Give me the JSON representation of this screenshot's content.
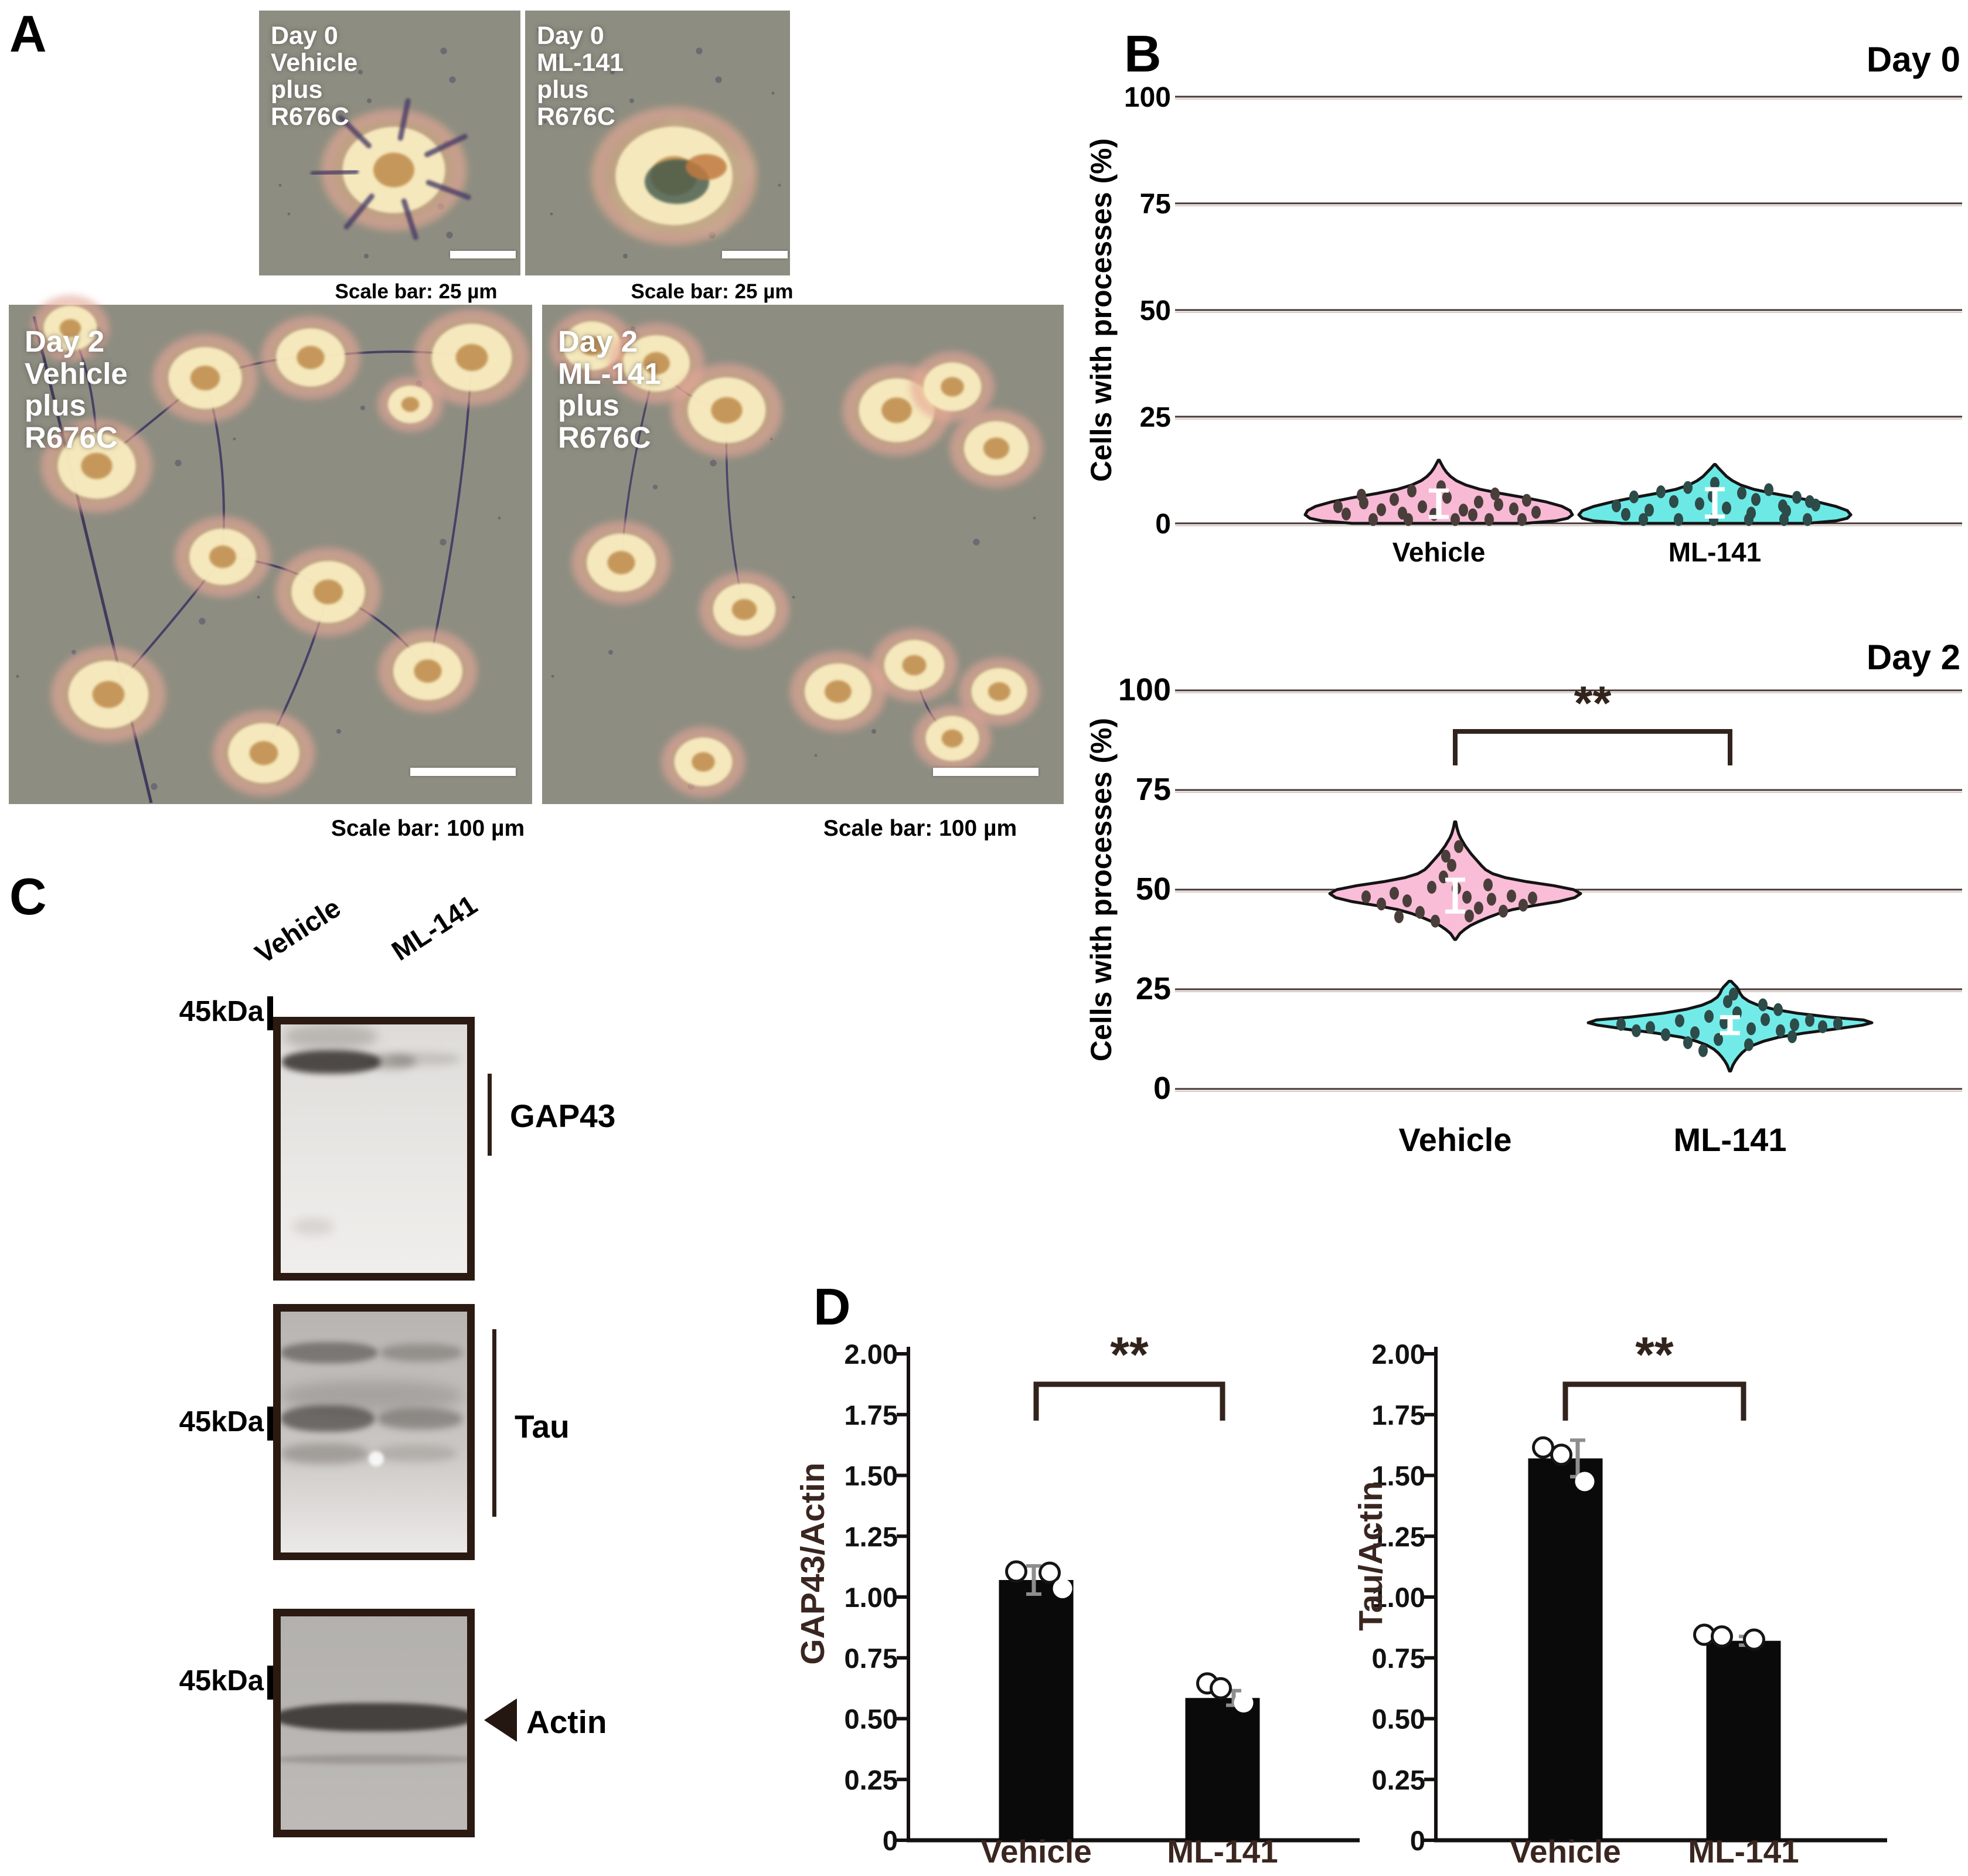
{
  "figure": {
    "panel_a_label": "A",
    "panel_b_label": "B",
    "panel_c_label": "C",
    "panel_d_label": "D"
  },
  "panel_a": {
    "images": [
      {
        "caption_lines": [
          "Day 0",
          "Vehicle",
          "plus",
          "R676C"
        ],
        "scale_bar_text": "Scale bar: 25 µm"
      },
      {
        "caption_lines": [
          "Day 0",
          "ML-141",
          "plus",
          "R676C"
        ],
        "scale_bar_text": "Scale bar: 25 µm"
      },
      {
        "caption_lines": [
          "Day 2",
          "Vehicle",
          "plus",
          "R676C"
        ],
        "scale_bar_text": "Scale bar: 100 µm"
      },
      {
        "caption_lines": [
          "Day 2",
          "ML-141",
          "plus",
          "R676C"
        ],
        "scale_bar_text": "Scale bar: 100 µm"
      }
    ]
  },
  "panel_c": {
    "lane_labels": [
      "Vehicle",
      "ML-141"
    ],
    "marker_label": "45kDa",
    "blot_names": [
      "GAP43",
      "Tau",
      "Actin"
    ],
    "icons": {
      "actin_arrowhead": "left-pointing-triangle"
    }
  },
  "chart_data": [
    {
      "type": "violin",
      "title": "Day 0",
      "ylabel": "Cells with processes (%)",
      "ylim": [
        0,
        100
      ],
      "yticks": [
        100,
        75,
        50,
        25,
        0
      ],
      "categories": [
        "Vehicle",
        "ML-141"
      ],
      "grid": true,
      "significance": null,
      "series": [
        {
          "name": "Vehicle",
          "color": "#F8B9D5",
          "dot_color": "#4a3e3b",
          "mean": 4.6,
          "sd": 3.1,
          "profile": [
            [
              0,
              148
            ],
            [
              0.6,
              200
            ],
            [
              1.2,
              220
            ],
            [
              2,
              228
            ],
            [
              3,
              224
            ],
            [
              4,
              210
            ],
            [
              5,
              184
            ],
            [
              6,
              148
            ],
            [
              7,
              106
            ],
            [
              8,
              70
            ],
            [
              9,
              46
            ],
            [
              10,
              30
            ],
            [
              11,
              20
            ],
            [
              12,
              13
            ],
            [
              13,
              8
            ],
            [
              14,
              4
            ],
            [
              14.8,
              1
            ]
          ],
          "points": [
            [
              -158,
              2.2
            ],
            [
              -128,
              4.8
            ],
            [
              -98,
              3.2
            ],
            [
              -132,
              6.6
            ],
            [
              -62,
              2.4
            ],
            [
              -76,
              5.6
            ],
            [
              -28,
              3.9
            ],
            [
              -8,
              2.1
            ],
            [
              14,
              6.1
            ],
            [
              -46,
              7.6
            ],
            [
              4,
              8.6
            ],
            [
              42,
              3.1
            ],
            [
              68,
              5
            ],
            [
              58,
              2
            ],
            [
              102,
              4.4
            ],
            [
              96,
              6.9
            ],
            [
              128,
              3.4
            ],
            [
              150,
              5.4
            ],
            [
              166,
              2.6
            ],
            [
              -172,
              3.9
            ],
            [
              -112,
              0.9
            ],
            [
              -52,
              0.9
            ],
            [
              28,
              0.9
            ],
            [
              86,
              0.9
            ],
            [
              142,
              0.9
            ]
          ]
        },
        {
          "name": "ML-141",
          "color": "#6CE9E5",
          "dot_color": "#2d4b48",
          "mean": 4.8,
          "sd": 3.2,
          "profile": [
            [
              0,
              158
            ],
            [
              0.6,
              208
            ],
            [
              1.2,
              226
            ],
            [
              2,
              232
            ],
            [
              3,
              226
            ],
            [
              4,
              206
            ],
            [
              5,
              176
            ],
            [
              6,
              140
            ],
            [
              7,
              100
            ],
            [
              8,
              66
            ],
            [
              9,
              44
            ],
            [
              10,
              30
            ],
            [
              11,
              20
            ],
            [
              12,
              13
            ],
            [
              13,
              6
            ],
            [
              13.8,
              1
            ]
          ],
          "points": [
            [
              -168,
              4.1
            ],
            [
              -138,
              6.2
            ],
            [
              -112,
              3.1
            ],
            [
              -92,
              7.4
            ],
            [
              -70,
              5.1
            ],
            [
              -46,
              8.4
            ],
            [
              -26,
              4.6
            ],
            [
              -4,
              6.4
            ],
            [
              20,
              3.6
            ],
            [
              46,
              7.1
            ],
            [
              70,
              5.6
            ],
            [
              92,
              7.9
            ],
            [
              116,
              4.1
            ],
            [
              140,
              6.1
            ],
            [
              162,
              5.1
            ],
            [
              -152,
              2.1
            ],
            [
              0,
              9.4
            ],
            [
              62,
              2.4
            ],
            [
              122,
              2.9
            ],
            [
              172,
              4.3
            ],
            [
              -122,
              0.9
            ],
            [
              -62,
              0.9
            ],
            [
              -2,
              0.9
            ],
            [
              58,
              0.9
            ],
            [
              118,
              0.9
            ],
            [
              158,
              0.9
            ]
          ]
        }
      ]
    },
    {
      "type": "violin",
      "title": "Day 2",
      "ylabel": "Cells with processes (%)",
      "ylim": [
        0,
        100
      ],
      "yticks": [
        100,
        75,
        50,
        25,
        0
      ],
      "categories": [
        "Vehicle",
        "ML-141"
      ],
      "grid": true,
      "significance": {
        "label": "**",
        "between": [
          "Vehicle",
          "ML-141"
        ]
      },
      "series": [
        {
          "name": "Vehicle",
          "color": "#F9BDD7",
          "dot_color": "#4a3e3b",
          "mean": 48.5,
          "sd": 4,
          "closed": true,
          "profile": [
            [
              37.5,
              1
            ],
            [
              39,
              8
            ],
            [
              40,
              16
            ],
            [
              41,
              26
            ],
            [
              42,
              40
            ],
            [
              43,
              56
            ],
            [
              44,
              74
            ],
            [
              45,
              98
            ],
            [
              46,
              134
            ],
            [
              47,
              176
            ],
            [
              48,
              204
            ],
            [
              49,
              214
            ],
            [
              50,
              202
            ],
            [
              51,
              168
            ],
            [
              52,
              122
            ],
            [
              53,
              86
            ],
            [
              54,
              64
            ],
            [
              55,
              52
            ],
            [
              56,
              45
            ],
            [
              57,
              39
            ],
            [
              58,
              33
            ],
            [
              59,
              27
            ],
            [
              60,
              22
            ],
            [
              61,
              17
            ],
            [
              62,
              13
            ],
            [
              63,
              9
            ],
            [
              64,
              6
            ],
            [
              65.5,
              3
            ],
            [
              67,
              1
            ]
          ],
          "points": [
            [
              -152,
              48.2
            ],
            [
              -126,
              46.4
            ],
            [
              -104,
              49.1
            ],
            [
              -82,
              47.2
            ],
            [
              -60,
              44.3
            ],
            [
              -40,
              50.6
            ],
            [
              -20,
              53.2
            ],
            [
              -6,
              56.1
            ],
            [
              6,
              60.8
            ],
            [
              -16,
              58.4
            ],
            [
              20,
              48.1
            ],
            [
              40,
              45.4
            ],
            [
              62,
              47.6
            ],
            [
              82,
              44.6
            ],
            [
              96,
              48.4
            ],
            [
              116,
              46.1
            ],
            [
              132,
              47.9
            ],
            [
              -96,
              43.2
            ],
            [
              -34,
              42.1
            ],
            [
              24,
              43.4
            ],
            [
              56,
              51.2
            ],
            [
              2,
              50.3
            ]
          ]
        },
        {
          "name": "ML-141",
          "color": "#72EBE8",
          "dot_color": "#2d4b48",
          "mean": 16,
          "sd": 2,
          "closed": true,
          "profile": [
            [
              4.5,
              1
            ],
            [
              6,
              5
            ],
            [
              7,
              9
            ],
            [
              8,
              14
            ],
            [
              9,
              20
            ],
            [
              10,
              28
            ],
            [
              11,
              40
            ],
            [
              12,
              58
            ],
            [
              13,
              84
            ],
            [
              14,
              126
            ],
            [
              15,
              178
            ],
            [
              16,
              226
            ],
            [
              16.6,
              242
            ],
            [
              17.3,
              228
            ],
            [
              18,
              172
            ],
            [
              19,
              114
            ],
            [
              20,
              74
            ],
            [
              21,
              48
            ],
            [
              22,
              32
            ],
            [
              23,
              22
            ],
            [
              24,
              17
            ],
            [
              25,
              14
            ],
            [
              25.6,
              11
            ],
            [
              26.2,
              7
            ],
            [
              27,
              2
            ]
          ],
          "points": [
            [
              -186,
              16.2
            ],
            [
              -160,
              14.6
            ],
            [
              -136,
              15.4
            ],
            [
              -110,
              13.6
            ],
            [
              -86,
              17.1
            ],
            [
              -60,
              14.1
            ],
            [
              -36,
              18.2
            ],
            [
              -10,
              16.6
            ],
            [
              12,
              19.1
            ],
            [
              36,
              15.1
            ],
            [
              60,
              17.4
            ],
            [
              86,
              14.6
            ],
            [
              110,
              16.1
            ],
            [
              136,
              17.2
            ],
            [
              158,
              15.6
            ],
            [
              184,
              16.4
            ],
            [
              -72,
              11.6
            ],
            [
              -20,
              12.4
            ],
            [
              32,
              11.1
            ],
            [
              -46,
              9.6
            ],
            [
              6,
              23.8
            ],
            [
              56,
              21.1
            ],
            [
              -4,
              21.9
            ],
            [
              106,
              13.1
            ],
            [
              82,
              19.9
            ]
          ]
        }
      ]
    },
    {
      "type": "bar",
      "title": "",
      "ylabel": "GAP43/Actin",
      "ylim": [
        0,
        2
      ],
      "ytick_labels": [
        "2.00",
        "1.75",
        "1.50",
        "1.25",
        "1.00",
        "0.75",
        "0.50",
        "0.25",
        "0"
      ],
      "categories": [
        "Vehicle",
        "ML-141"
      ],
      "values": [
        1.07,
        0.585
      ],
      "sd": [
        0.058,
        0.03
      ],
      "bar_color": "#0a0a0a",
      "points": [
        [
          [
            -34,
            1.105
          ],
          [
            23,
            1.1
          ],
          [
            45,
            1.035
          ]
        ],
        [
          [
            -26,
            0.645
          ],
          [
            -3,
            0.625
          ],
          [
            36,
            0.565
          ]
        ]
      ],
      "significance": {
        "label": "**",
        "between": [
          "Vehicle",
          "ML-141"
        ]
      }
    },
    {
      "type": "bar",
      "title": "",
      "ylabel": "Tau/Actin",
      "ylim": [
        0,
        2
      ],
      "ytick_labels": [
        "2.00",
        "1.75",
        "1.50",
        "1.25",
        "1.00",
        "0.75",
        "0.50",
        "0.25",
        "0"
      ],
      "categories": [
        "Vehicle",
        "ML-141"
      ],
      "values": [
        1.57,
        0.82
      ],
      "sd": [
        0.075,
        0.018
      ],
      "bar_color": "#0a0a0a",
      "points": [
        [
          [
            -38,
            1.615
          ],
          [
            -7,
            1.585
          ],
          [
            33,
            1.475
          ]
        ],
        [
          [
            -67,
            0.845
          ],
          [
            -37,
            0.838
          ],
          [
            18,
            0.825
          ]
        ]
      ],
      "significance": {
        "label": "**",
        "between": [
          "Vehicle",
          "ML-141"
        ]
      }
    }
  ],
  "style": {
    "grid_color": "#473734",
    "sig_color": "#32231d",
    "axis_color": "#141010",
    "d_text_color": "#3a2620"
  }
}
